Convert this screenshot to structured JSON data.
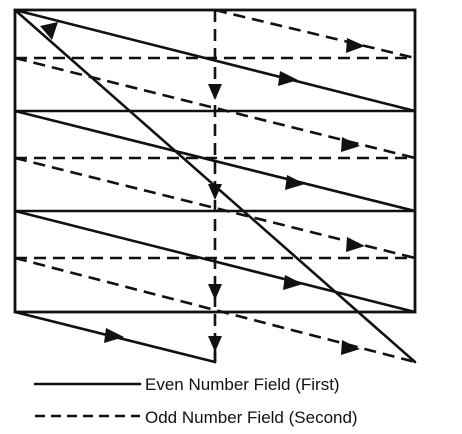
{
  "legend": {
    "solid_label": "Even Number Field (First)",
    "dashed_label": "Odd Number Field (Second)"
  },
  "colors": {
    "line": "#111111",
    "background": "#ffffff"
  },
  "fields": [
    {
      "name": "Even Number Field (First)",
      "line_style": "solid",
      "order": 1
    },
    {
      "name": "Odd Number Field (Second)",
      "line_style": "dashed",
      "order": 2
    }
  ]
}
